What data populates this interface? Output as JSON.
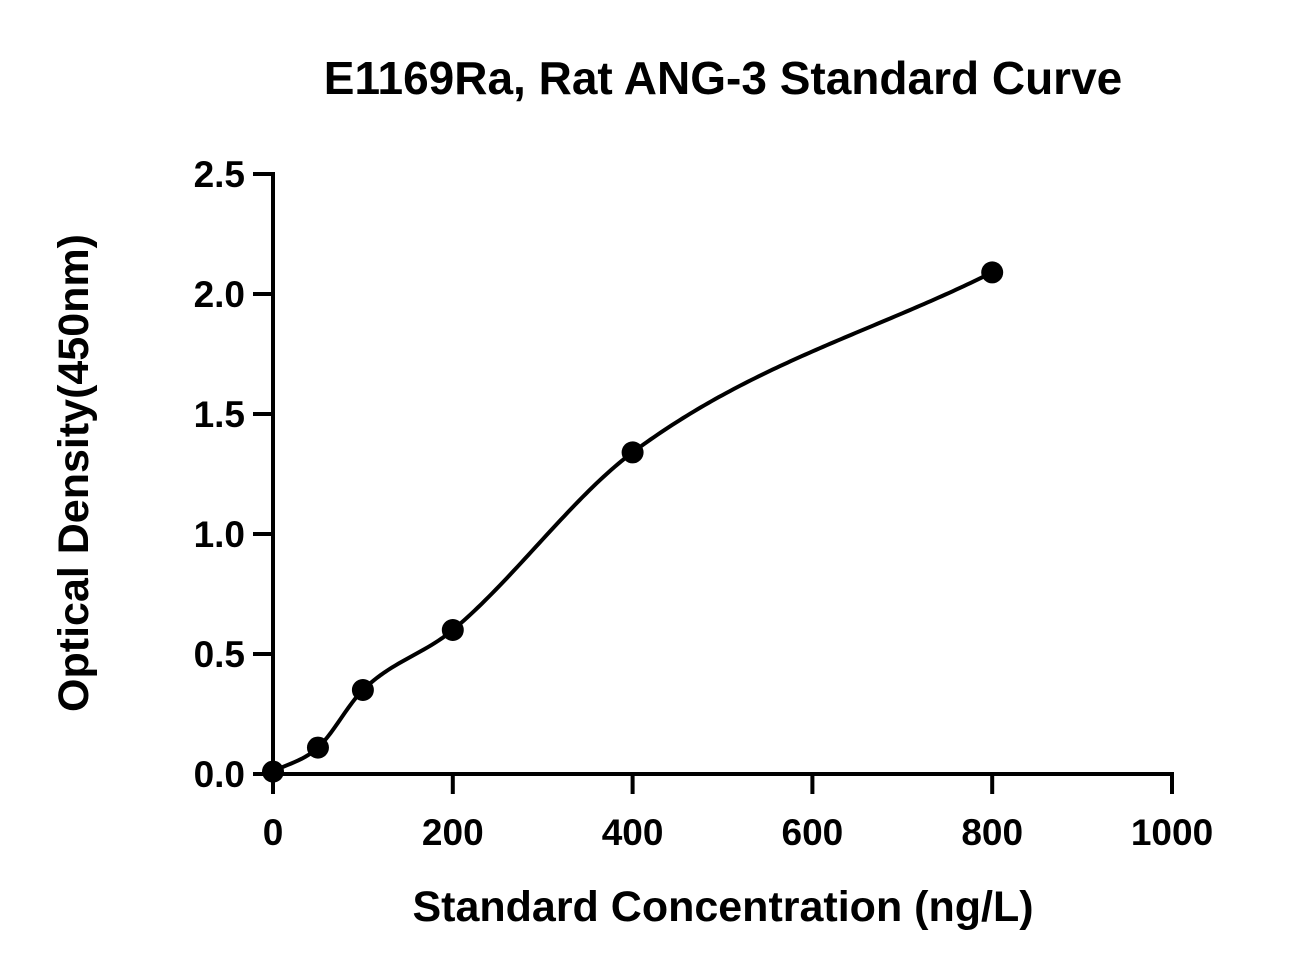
{
  "chart_data": {
    "type": "scatter",
    "title": "E1169Ra, Rat ANG-3 Standard Curve",
    "xlabel": "Standard Concentration (ng/L)",
    "ylabel": "Optical Density(450nm)",
    "xlim": [
      0,
      1000
    ],
    "ylim": [
      0,
      2.5
    ],
    "x_ticks": [
      "0",
      "200",
      "400",
      "600",
      "800",
      "1000"
    ],
    "y_ticks": [
      "0.0",
      "0.5",
      "1.0",
      "1.5",
      "2.0",
      "2.5"
    ],
    "series": [
      {
        "x": [
          0,
          50,
          100,
          200,
          400,
          800
        ],
        "y": [
          0.01,
          0.11,
          0.35,
          0.6,
          1.34,
          2.09
        ],
        "marker": "filled-circle",
        "fit_curve": true
      }
    ],
    "grid": false,
    "legend": "none",
    "colors": {
      "marks": "#000000",
      "background": "#ffffff"
    }
  }
}
